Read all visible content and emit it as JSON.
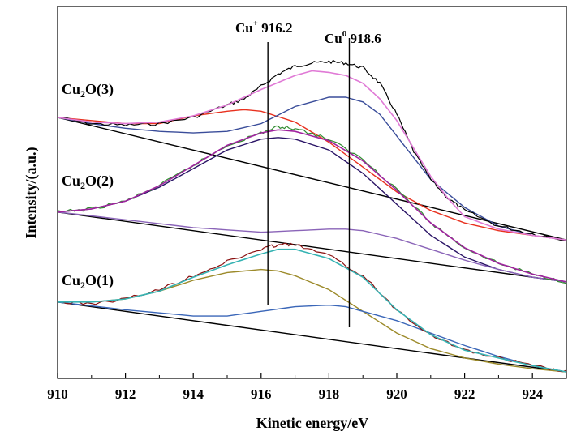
{
  "chart_data": {
    "type": "line",
    "xlabel": "Kinetic energy/eV",
    "ylabel": "Intensity/(a.u.)",
    "xlim": [
      910,
      925
    ],
    "x_ticks": [
      "910",
      "912",
      "914",
      "916",
      "918",
      "920",
      "922",
      "924"
    ],
    "y_ticks_labeled": false,
    "grid": false,
    "legend": "none",
    "annotations": [
      {
        "species": "Cu",
        "charge": "+",
        "value_label": "916.2",
        "x": 916.2
      },
      {
        "species": "Cu",
        "charge": "0",
        "value_label": "918.6",
        "x": 918.6
      }
    ],
    "samples": [
      {
        "label_base": "Cu",
        "label_sub": "2",
        "label_tail": "O(3)",
        "baseline": [
          [
            910,
            0.82
          ],
          [
            925,
            0.425
          ]
        ],
        "raw": [
          [
            910,
            0.82
          ],
          [
            911,
            0.8
          ],
          [
            912,
            0.795
          ],
          [
            913,
            0.8
          ],
          [
            914,
            0.82
          ],
          [
            915,
            0.86
          ],
          [
            915.5,
            0.88
          ],
          [
            916,
            0.92
          ],
          [
            916.5,
            0.96
          ],
          [
            917,
            0.985
          ],
          [
            917.5,
            0.995
          ],
          [
            918,
            1.0
          ],
          [
            918.5,
            0.995
          ],
          [
            919,
            0.98
          ],
          [
            919.5,
            0.93
          ],
          [
            920,
            0.83
          ],
          [
            920.5,
            0.71
          ],
          [
            921,
            0.62
          ],
          [
            921.5,
            0.56
          ],
          [
            922,
            0.52
          ],
          [
            923,
            0.47
          ],
          [
            924,
            0.445
          ],
          [
            925,
            0.425
          ]
        ],
        "envelope": [
          [
            910,
            0.82
          ],
          [
            911,
            0.805
          ],
          [
            912,
            0.8
          ],
          [
            913,
            0.805
          ],
          [
            914,
            0.825
          ],
          [
            915,
            0.86
          ],
          [
            916,
            0.91
          ],
          [
            917,
            0.955
          ],
          [
            917.5,
            0.97
          ],
          [
            918,
            0.965
          ],
          [
            918.5,
            0.955
          ],
          [
            919,
            0.93
          ],
          [
            919.5,
            0.88
          ],
          [
            920,
            0.81
          ],
          [
            920.5,
            0.72
          ],
          [
            921,
            0.63
          ],
          [
            921.5,
            0.56
          ],
          [
            922,
            0.5
          ],
          [
            923,
            0.46
          ],
          [
            924,
            0.44
          ],
          [
            925,
            0.425
          ]
        ],
        "components": [
          {
            "peak": 916.2,
            "points": [
              [
                910,
                0.82
              ],
              [
                912,
                0.8
              ],
              [
                913,
                0.8
              ],
              [
                914,
                0.825
              ],
              [
                915,
                0.84
              ],
              [
                915.5,
                0.845
              ],
              [
                916,
                0.84
              ],
              [
                917,
                0.805
              ],
              [
                918,
                0.74
              ],
              [
                919,
                0.66
              ],
              [
                920,
                0.58
              ],
              [
                921,
                0.52
              ],
              [
                922,
                0.48
              ],
              [
                923,
                0.455
              ],
              [
                924,
                0.44
              ],
              [
                925,
                0.425
              ]
            ]
          },
          {
            "peak": 918.6,
            "points": [
              [
                910,
                0.82
              ],
              [
                911,
                0.8
              ],
              [
                912,
                0.785
              ],
              [
                913,
                0.775
              ],
              [
                914,
                0.77
              ],
              [
                915,
                0.775
              ],
              [
                916,
                0.8
              ],
              [
                917,
                0.855
              ],
              [
                918,
                0.885
              ],
              [
                918.5,
                0.885
              ],
              [
                919,
                0.87
              ],
              [
                919.5,
                0.83
              ],
              [
                920,
                0.76
              ],
              [
                921,
                0.62
              ],
              [
                922,
                0.53
              ],
              [
                923,
                0.47
              ],
              [
                924,
                0.44
              ],
              [
                925,
                0.425
              ]
            ]
          }
        ]
      },
      {
        "label_base": "Cu",
        "label_sub": "2",
        "label_tail": "O(2)",
        "baseline": [
          [
            910,
            0.515
          ],
          [
            925,
            0.29
          ]
        ],
        "raw": [
          [
            910,
            0.515
          ],
          [
            911,
            0.525
          ],
          [
            912,
            0.55
          ],
          [
            913,
            0.6
          ],
          [
            914,
            0.665
          ],
          [
            915,
            0.73
          ],
          [
            916,
            0.77
          ],
          [
            916.5,
            0.79
          ],
          [
            917,
            0.785
          ],
          [
            918,
            0.75
          ],
          [
            919,
            0.685
          ],
          [
            920,
            0.59
          ],
          [
            921,
            0.48
          ],
          [
            922,
            0.4
          ],
          [
            923,
            0.35
          ],
          [
            924,
            0.315
          ],
          [
            925,
            0.29
          ]
        ],
        "envelope": [
          [
            910,
            0.515
          ],
          [
            911,
            0.525
          ],
          [
            912,
            0.55
          ],
          [
            913,
            0.6
          ],
          [
            914,
            0.665
          ],
          [
            915,
            0.73
          ],
          [
            916,
            0.77
          ],
          [
            916.5,
            0.78
          ],
          [
            917,
            0.775
          ],
          [
            918,
            0.745
          ],
          [
            919,
            0.68
          ],
          [
            920,
            0.585
          ],
          [
            921,
            0.48
          ],
          [
            922,
            0.4
          ],
          [
            923,
            0.35
          ],
          [
            924,
            0.315
          ],
          [
            925,
            0.29
          ]
        ],
        "components": [
          {
            "peak": 916.2,
            "points": [
              [
                910,
                0.515
              ],
              [
                911,
                0.525
              ],
              [
                912,
                0.55
              ],
              [
                913,
                0.595
              ],
              [
                914,
                0.655
              ],
              [
                915,
                0.715
              ],
              [
                916,
                0.75
              ],
              [
                916.5,
                0.755
              ],
              [
                917,
                0.75
              ],
              [
                918,
                0.715
              ],
              [
                919,
                0.64
              ],
              [
                920,
                0.54
              ],
              [
                921,
                0.44
              ],
              [
                922,
                0.37
              ],
              [
                923,
                0.33
              ],
              [
                924,
                0.305
              ],
              [
                925,
                0.29
              ]
            ]
          },
          {
            "peak": 918.6,
            "points": [
              [
                910,
                0.515
              ],
              [
                912,
                0.49
              ],
              [
                914,
                0.465
              ],
              [
                916,
                0.45
              ],
              [
                917,
                0.455
              ],
              [
                918,
                0.46
              ],
              [
                918.5,
                0.46
              ],
              [
                919,
                0.455
              ],
              [
                920,
                0.43
              ],
              [
                921,
                0.395
              ],
              [
                922,
                0.36
              ],
              [
                923,
                0.33
              ],
              [
                924,
                0.305
              ],
              [
                925,
                0.29
              ]
            ]
          }
        ]
      },
      {
        "label_base": "Cu",
        "label_sub": "2",
        "label_tail": "O(1)",
        "baseline": [
          [
            910,
            0.225
          ],
          [
            925,
            0.0
          ]
        ],
        "raw": [
          [
            910,
            0.225
          ],
          [
            911,
            0.22
          ],
          [
            912,
            0.235
          ],
          [
            913,
            0.265
          ],
          [
            914,
            0.31
          ],
          [
            915,
            0.355
          ],
          [
            916,
            0.395
          ],
          [
            916.5,
            0.41
          ],
          [
            917,
            0.41
          ],
          [
            918,
            0.375
          ],
          [
            919,
            0.31
          ],
          [
            920,
            0.2
          ],
          [
            921,
            0.12
          ],
          [
            922,
            0.07
          ],
          [
            923,
            0.045
          ],
          [
            924,
            0.02
          ],
          [
            925,
            0.0
          ]
        ],
        "envelope": [
          [
            910,
            0.225
          ],
          [
            911,
            0.225
          ],
          [
            912,
            0.235
          ],
          [
            913,
            0.26
          ],
          [
            914,
            0.305
          ],
          [
            915,
            0.345
          ],
          [
            916,
            0.38
          ],
          [
            916.5,
            0.395
          ],
          [
            917,
            0.395
          ],
          [
            918,
            0.365
          ],
          [
            919,
            0.305
          ],
          [
            920,
            0.2
          ],
          [
            921,
            0.12
          ],
          [
            922,
            0.07
          ],
          [
            923,
            0.045
          ],
          [
            924,
            0.02
          ],
          [
            925,
            0.0
          ]
        ],
        "components": [
          {
            "peak": 916.2,
            "points": [
              [
                910,
                0.225
              ],
              [
                911,
                0.225
              ],
              [
                912,
                0.235
              ],
              [
                913,
                0.26
              ],
              [
                914,
                0.295
              ],
              [
                915,
                0.32
              ],
              [
                916,
                0.33
              ],
              [
                916.5,
                0.325
              ],
              [
                917,
                0.31
              ],
              [
                918,
                0.265
              ],
              [
                919,
                0.195
              ],
              [
                920,
                0.125
              ],
              [
                921,
                0.075
              ],
              [
                922,
                0.045
              ],
              [
                923,
                0.025
              ],
              [
                924,
                0.01
              ],
              [
                925,
                0.0
              ]
            ]
          },
          {
            "peak": 918.6,
            "points": [
              [
                910,
                0.225
              ],
              [
                912,
                0.2
              ],
              [
                914,
                0.18
              ],
              [
                915,
                0.18
              ],
              [
                916,
                0.195
              ],
              [
                917,
                0.21
              ],
              [
                918,
                0.215
              ],
              [
                918.5,
                0.21
              ],
              [
                919,
                0.195
              ],
              [
                920,
                0.165
              ],
              [
                921,
                0.125
              ],
              [
                922,
                0.085
              ],
              [
                923,
                0.05
              ],
              [
                924,
                0.02
              ],
              [
                925,
                0.0
              ]
            ]
          }
        ]
      }
    ],
    "colors": {
      "axis": "#000000",
      "baseline": "#000000",
      "marker_line": "#000000",
      "sample3": {
        "raw": "#000000",
        "envelope": "#e07ad6",
        "comp1": "#e8311f",
        "comp2": "#3a4d9a"
      },
      "sample2": {
        "raw": "#2f8a2f",
        "envelope": "#a0239f",
        "comp1": "#2a1466",
        "comp2": "#8a64b8"
      },
      "sample1": {
        "raw": "#8a1010",
        "envelope": "#36b3b3",
        "comp1": "#9c8a2a",
        "comp2": "#3a66b8"
      }
    }
  }
}
